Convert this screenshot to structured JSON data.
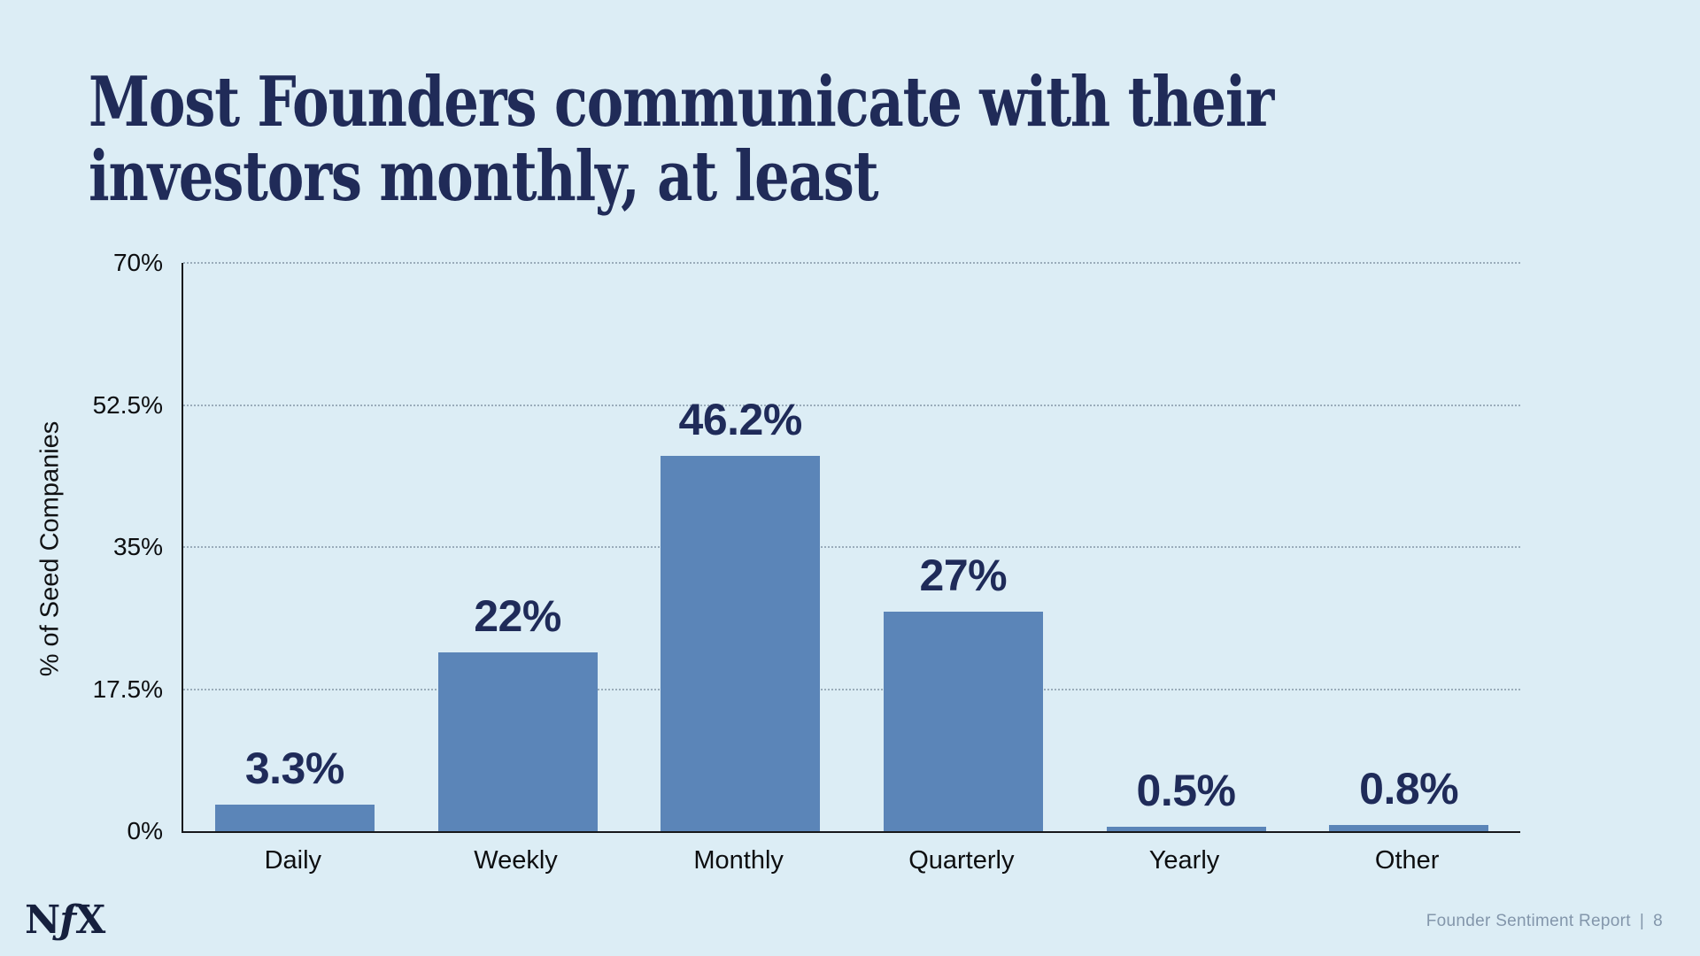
{
  "slide": {
    "title_lines": [
      "Most Founders communicate with their",
      "investors monthly, at least"
    ],
    "logo": {
      "n": "N",
      "f": "ƒ",
      "x": "X"
    },
    "footer": {
      "report_name": "Founder Sentiment Report",
      "separator": "|",
      "page_number": "8"
    }
  },
  "colors": {
    "background": "#dcedf5",
    "bar": "#5b85b8",
    "title_text": "#202b58",
    "value_label_text": "#1f2b59",
    "axis_text": "#0d0e10",
    "axis_line": "#17181b",
    "gridline": "#9aacba",
    "footer_text": "#8396ab",
    "logo_text": "#16203e"
  },
  "chart_data": {
    "type": "bar",
    "categories": [
      "Daily",
      "Weekly",
      "Monthly",
      "Quarterly",
      "Yearly",
      "Other"
    ],
    "values": [
      3.3,
      22,
      46.2,
      27,
      0.5,
      0.8
    ],
    "value_labels": [
      "3.3%",
      "22%",
      "46.2%",
      "27%",
      "0.5%",
      "0.8%"
    ],
    "title": "",
    "xlabel": "",
    "ylabel": "% of Seed Companies",
    "ylim": [
      0,
      70
    ],
    "yticks": [
      0,
      17.5,
      35,
      52.5,
      70
    ],
    "ytick_labels": [
      "0%",
      "17.5%",
      "35%",
      "52.5%",
      "70%"
    ],
    "grid": "horizontal-dotted",
    "legend": "none"
  }
}
